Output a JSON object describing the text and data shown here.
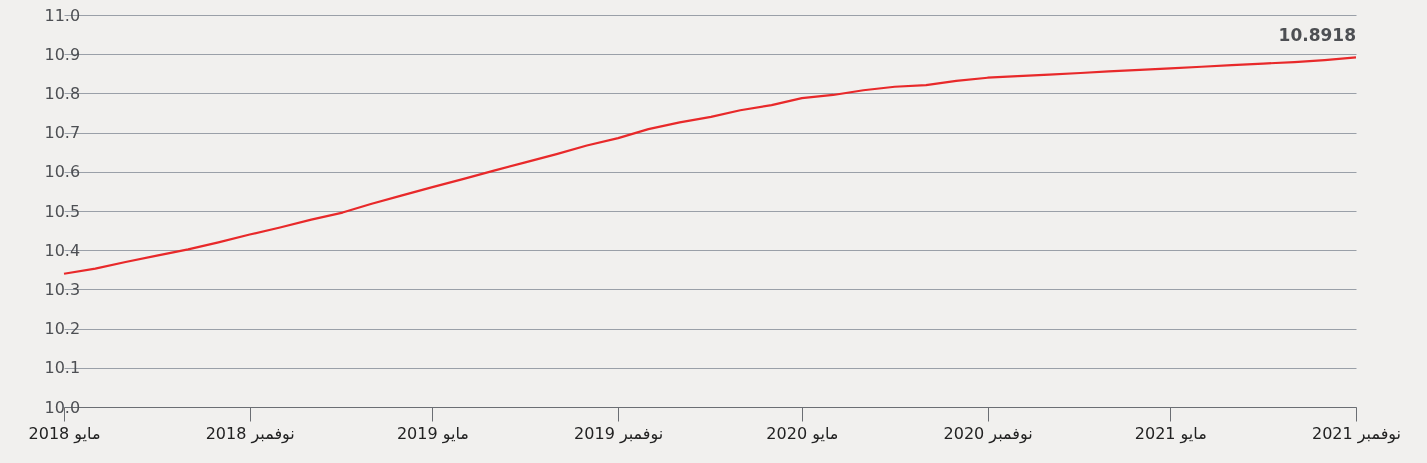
{
  "chart_data": {
    "type": "line",
    "x": [
      "2018-05",
      "2018-06",
      "2018-07",
      "2018-08",
      "2018-09",
      "2018-10",
      "2018-11",
      "2018-12",
      "2019-01",
      "2019-02",
      "2019-03",
      "2019-04",
      "2019-05",
      "2019-06",
      "2019-07",
      "2019-08",
      "2019-09",
      "2019-10",
      "2019-11",
      "2019-12",
      "2020-01",
      "2020-02",
      "2020-03",
      "2020-04",
      "2020-05",
      "2020-06",
      "2020-07",
      "2020-08",
      "2020-09",
      "2020-10",
      "2020-11",
      "2020-12",
      "2021-01",
      "2021-02",
      "2021-03",
      "2021-04",
      "2021-05",
      "2021-06",
      "2021-07",
      "2021-08",
      "2021-09",
      "2021-10",
      "2021-11"
    ],
    "series": [
      {
        "color": "#e8292a",
        "values": [
          10.34,
          10.353,
          10.37,
          10.386,
          10.402,
          10.42,
          10.44,
          10.458,
          10.478,
          10.496,
          10.518,
          10.54,
          10.561,
          10.582,
          10.603,
          10.624,
          10.645,
          10.667,
          10.686,
          10.709,
          10.726,
          10.74,
          10.757,
          10.77,
          10.788,
          10.796,
          10.808,
          10.817,
          10.821,
          10.832,
          10.84,
          10.844,
          10.848,
          10.852,
          10.856,
          10.86,
          10.864,
          10.868,
          10.872,
          10.876,
          10.88,
          10.885,
          10.8918
        ]
      }
    ],
    "xlim": [
      "2018-05",
      "2021-11"
    ],
    "xticks": [
      {
        "value": "2018-05",
        "label": "2018 مايو"
      },
      {
        "value": "2018-11",
        "label": "2018 نوفمبر"
      },
      {
        "value": "2019-05",
        "label": "2019 مايو"
      },
      {
        "value": "2019-11",
        "label": "2019 نوفمبر"
      },
      {
        "value": "2020-05",
        "label": "2020 مايو"
      },
      {
        "value": "2020-11",
        "label": "2020 نوفمبر"
      },
      {
        "value": "2021-05",
        "label": "2021 مايو"
      },
      {
        "value": "2021-11",
        "label": "2021 نوفمبر"
      }
    ],
    "ylim": [
      10.0,
      11.0
    ],
    "yticks": [
      {
        "value": 10.0,
        "label": "10.0"
      },
      10.1,
      10.2,
      10.3,
      10.4,
      10.5,
      10.6,
      10.7,
      10.8,
      10.9,
      {
        "value": 11.0,
        "label": "11.0"
      }
    ],
    "annotations": [
      {
        "text": "10.8918",
        "x": "2021-11",
        "y": 10.8918
      }
    ],
    "grid": "y",
    "marker": "none",
    "line_style": "solid"
  }
}
